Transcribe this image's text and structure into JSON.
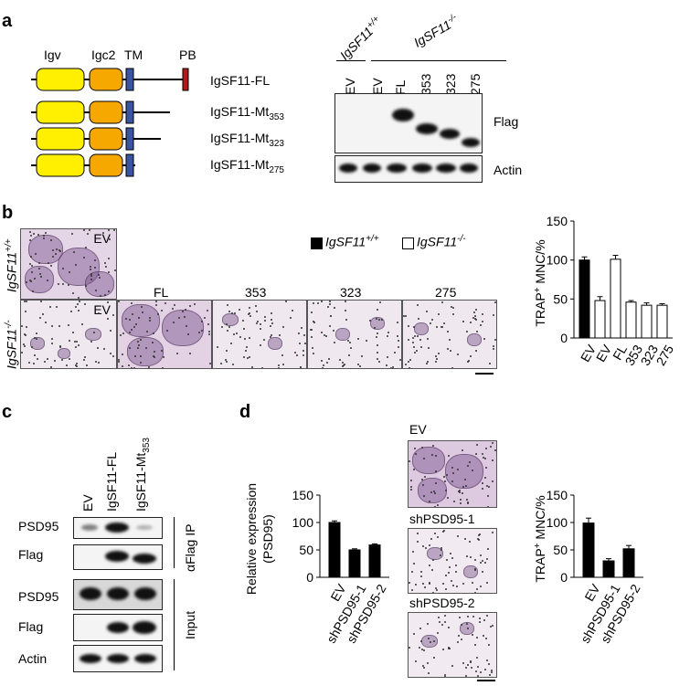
{
  "panels": {
    "a": "a",
    "b": "b",
    "c": "c",
    "d": "d"
  },
  "panel_a": {
    "domain_labels": [
      "Igv",
      "Igc2",
      "TM",
      "PB"
    ],
    "constructs": [
      {
        "name": "IgSF11-FL",
        "sub": ""
      },
      {
        "name": "IgSF11-Mt",
        "sub": "353"
      },
      {
        "name": "IgSF11-Mt",
        "sub": "323"
      },
      {
        "name": "IgSF11-Mt",
        "sub": "275"
      }
    ],
    "genotype_wt": "IgSF11",
    "genotype_wt_sup": "+/+",
    "genotype_ko": "IgSF11",
    "genotype_ko_sup": "-/-",
    "lanes": [
      "EV",
      "EV",
      "FL",
      "353",
      "323",
      "275"
    ],
    "blot_labels": [
      "Flag",
      "Actin"
    ]
  },
  "panel_b": {
    "row_wt": "IgSF11",
    "row_wt_sup": "+/+",
    "row_ko": "IgSF11",
    "row_ko_sup": "-/-",
    "image_labels": [
      "EV",
      "EV",
      "FL",
      "353",
      "323",
      "275"
    ],
    "legend_wt": "IgSF11",
    "legend_wt_sup": "+/+",
    "legend_ko": "IgSF11",
    "legend_ko_sup": "-/-"
  },
  "panel_c": {
    "lanes": [
      {
        "name": "EV",
        "sub": ""
      },
      {
        "name": "IgSF11-FL",
        "sub": ""
      },
      {
        "name": "IgSF11-Mt",
        "sub": "353"
      }
    ],
    "rows": [
      "PSD95",
      "Flag",
      "PSD95",
      "Flag",
      "Actin"
    ],
    "group_ip": "αFlag IP",
    "group_input": "Input"
  },
  "panel_d": {
    "image_labels": [
      "EV",
      "shPSD95-1",
      "shPSD95-2"
    ]
  },
  "chart_data": [
    {
      "type": "bar",
      "ylabel": "TRAP+ MNC/%",
      "ylabel_main": "TRAP",
      "ylabel_sup": "+",
      "ylabel_rest": " MNC/%",
      "categories": [
        "EV",
        "EV",
        "FL",
        "353",
        "323",
        "275"
      ],
      "series": [
        {
          "name": "IgSF11+/+",
          "values": [
            100,
            null,
            null,
            null,
            null,
            null
          ],
          "errors": [
            4,
            null,
            null,
            null,
            null,
            null
          ],
          "color": "#000000"
        },
        {
          "name": "IgSF11-/-",
          "values": [
            null,
            48,
            101,
            46,
            42,
            42
          ],
          "errors": [
            null,
            5,
            5,
            2,
            3,
            2
          ],
          "color": "#ffffff"
        }
      ],
      "ylim": [
        0,
        150
      ],
      "yticks": [
        0,
        50,
        100,
        150
      ]
    },
    {
      "type": "bar",
      "ylabel_line1": "Relative expression",
      "ylabel_line2": "(PSD95)",
      "categories": [
        "EV",
        "shPSD95-1",
        "shPSD95-2"
      ],
      "values": [
        100,
        50,
        59
      ],
      "errors": [
        3,
        2,
        2
      ],
      "ylim": [
        0,
        150
      ],
      "yticks": [
        0,
        50,
        100,
        150
      ]
    },
    {
      "type": "bar",
      "ylabel_main": "TRAP",
      "ylabel_sup": "+",
      "ylabel_rest": " MNC/%",
      "categories": [
        "EV",
        "shPSD95-1",
        "shPSD95-2"
      ],
      "values": [
        99,
        30,
        52
      ],
      "errors": [
        9,
        4,
        6
      ],
      "ylim": [
        0,
        150
      ],
      "yticks": [
        0,
        50,
        100,
        150
      ]
    }
  ]
}
